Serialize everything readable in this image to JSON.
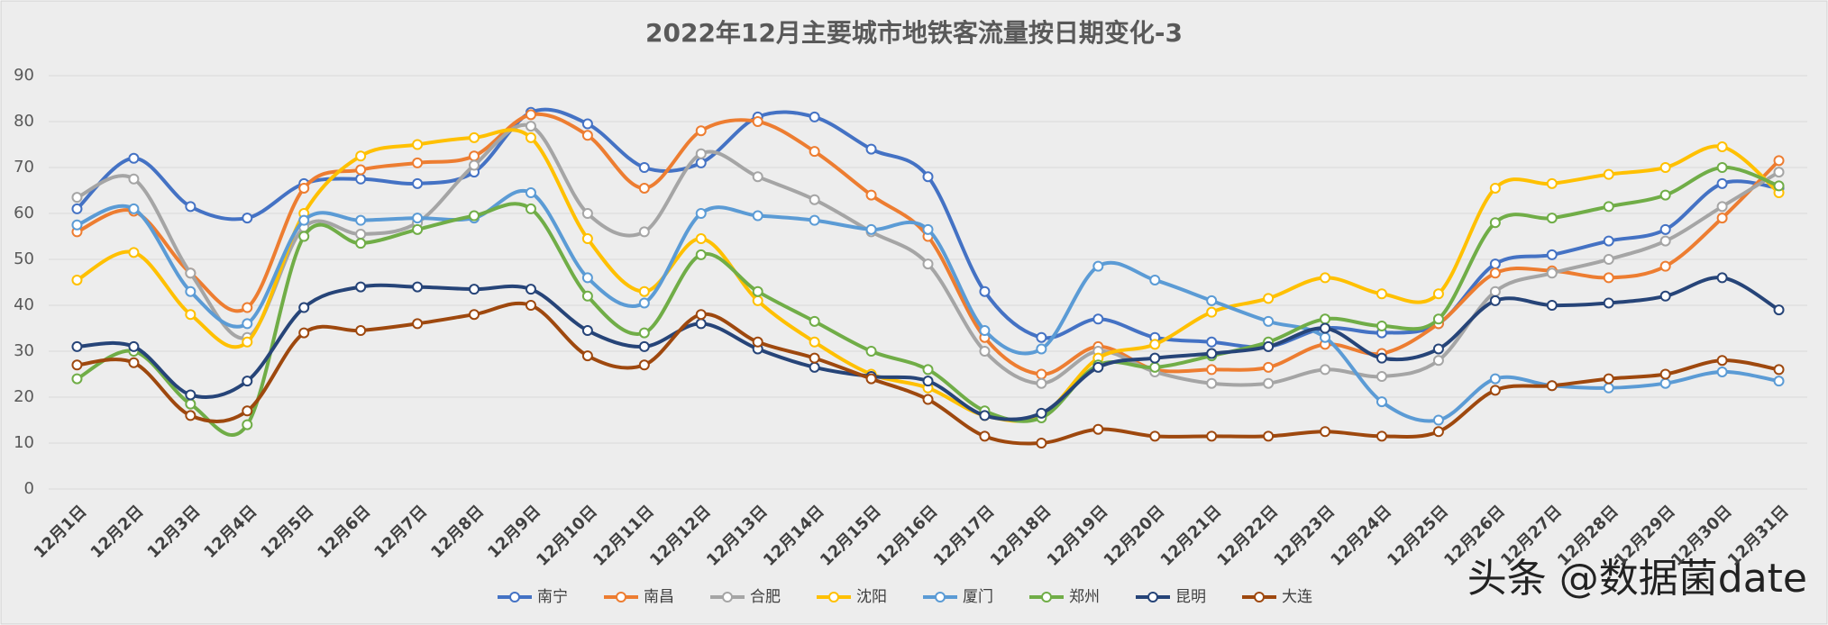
{
  "chart_data": {
    "type": "line",
    "title": "2022年12月主要城市地铁客流量按日期变化-3",
    "categories": [
      "12月1日",
      "12月2日",
      "12月3日",
      "12月4日",
      "12月5日",
      "12月6日",
      "12月7日",
      "12月8日",
      "12月9日",
      "12月10日",
      "12月11日",
      "12月12日",
      "12月13日",
      "12月14日",
      "12月15日",
      "12月16日",
      "12月17日",
      "12月18日",
      "12月19日",
      "12月20日",
      "12月21日",
      "12月22日",
      "12月23日",
      "12月24日",
      "12月25日",
      "12月26日",
      "12月27日",
      "12月28日",
      "12月29日",
      "12月30日",
      "12月31日"
    ],
    "series": [
      {
        "name": "南宁",
        "color": "#4472c4",
        "values": [
          61,
          72,
          61.5,
          59,
          66.5,
          67.5,
          66.5,
          69,
          82,
          79.5,
          70,
          71,
          81,
          81,
          74,
          68,
          43,
          33,
          37,
          33,
          32,
          31,
          35,
          34,
          36,
          49,
          51,
          54,
          56.5,
          66.5,
          65.5
        ]
      },
      {
        "name": "南昌",
        "color": "#ed7d31",
        "values": [
          56,
          60.5,
          47,
          39.5,
          65.5,
          69.5,
          71,
          72.5,
          81.5,
          77,
          65.5,
          78,
          80,
          73.5,
          64,
          55,
          33,
          25,
          31,
          26,
          26,
          26.5,
          31.5,
          29.5,
          36,
          47,
          47.5,
          46,
          48.5,
          59,
          71.5
        ]
      },
      {
        "name": "合肥",
        "color": "#a5a5a5",
        "values": [
          63.5,
          67.5,
          47,
          33,
          57,
          55.5,
          58,
          70.5,
          79,
          60,
          56,
          73,
          68,
          63,
          56,
          49,
          30,
          23,
          30,
          25.5,
          23,
          23,
          26,
          24.5,
          28,
          43,
          47,
          50,
          54,
          61.5,
          69
        ]
      },
      {
        "name": "沈阳",
        "color": "#ffc000",
        "values": [
          45.5,
          51.5,
          38,
          32,
          60,
          72.5,
          75,
          76.5,
          76.5,
          54.5,
          43,
          54.5,
          41,
          32,
          25,
          22,
          16,
          16,
          28.5,
          31.5,
          38.5,
          41.5,
          46,
          42.5,
          42.5,
          65.5,
          66.5,
          68.5,
          70,
          74.5,
          64.5
        ]
      },
      {
        "name": "厦门",
        "color": "#5b9bd5",
        "values": [
          57.5,
          61,
          43,
          36,
          58.5,
          58.5,
          59,
          59,
          64.5,
          46,
          40.5,
          60,
          59.5,
          58.5,
          56.5,
          56.5,
          34.5,
          30.5,
          48.5,
          45.5,
          41,
          36.5,
          33,
          19,
          15,
          24,
          22.5,
          22,
          23,
          25.5,
          23.5
        ]
      },
      {
        "name": "郑州",
        "color": "#70ad47",
        "values": [
          24,
          30,
          18.5,
          14,
          55,
          53.5,
          56.5,
          59.5,
          61,
          42,
          34,
          51,
          43,
          36.5,
          30,
          26,
          17,
          15.5,
          27,
          26.5,
          29,
          32,
          37,
          35.5,
          37,
          58,
          59,
          61.5,
          64,
          70,
          66
        ]
      },
      {
        "name": "昆明",
        "color": "#264478",
        "values": [
          31,
          31,
          20.5,
          23.5,
          39.5,
          44,
          44,
          43.5,
          43.5,
          34.5,
          31,
          36,
          30.5,
          26.5,
          24.5,
          23.5,
          16,
          16.5,
          26.5,
          28.5,
          29.5,
          31,
          35,
          28.5,
          30.5,
          41,
          40,
          40.5,
          42,
          46,
          39
        ]
      },
      {
        "name": "大连",
        "color": "#9e480e",
        "values": [
          27,
          27.5,
          16,
          17,
          34,
          34.5,
          36,
          38,
          40,
          29,
          27,
          38,
          32,
          28.5,
          24,
          19.5,
          11.5,
          10,
          13,
          11.5,
          11.5,
          11.5,
          12.5,
          11.5,
          12.5,
          21.5,
          22.5,
          24,
          25,
          28,
          26
        ]
      }
    ],
    "ylim": [
      0,
      90
    ],
    "yticks": [
      0,
      10,
      20,
      30,
      40,
      50,
      60,
      70,
      80,
      90
    ],
    "grid": true,
    "legend": "bottom",
    "watermark": "头条 @数据菌date"
  }
}
